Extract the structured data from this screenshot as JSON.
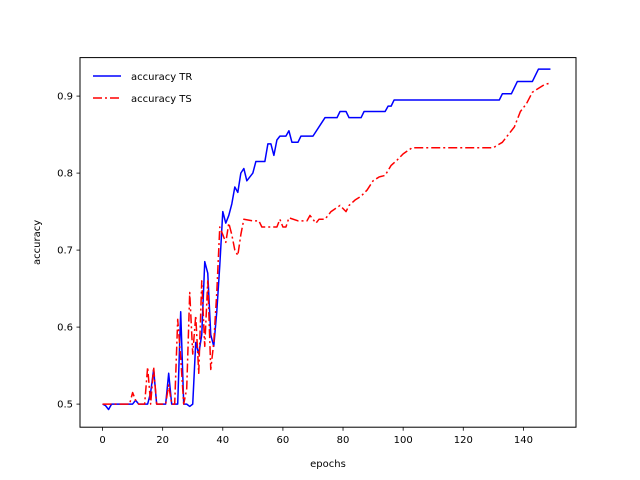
{
  "chart_data": {
    "type": "line",
    "xlabel": "epochs",
    "ylabel": "accuracy",
    "xlim": [
      -7.5,
      157.5
    ],
    "ylim": [
      0.47,
      0.95
    ],
    "xticks": [
      0,
      20,
      40,
      60,
      80,
      100,
      120,
      140
    ],
    "yticks": [
      0.5,
      0.6,
      0.7,
      0.8,
      0.9
    ],
    "ytick_labels": [
      "0.5",
      "0.6",
      "0.7",
      "0.8",
      "0.9"
    ],
    "grid": false,
    "legend_position": "top-left",
    "series": [
      {
        "name": "accuracy TR",
        "color": "#0000ff",
        "style": "solid",
        "points": [
          [
            0,
            0.5
          ],
          [
            1,
            0.498
          ],
          [
            2,
            0.493
          ],
          [
            3,
            0.5
          ],
          [
            5,
            0.5
          ],
          [
            8,
            0.5
          ],
          [
            10,
            0.5
          ],
          [
            11,
            0.505
          ],
          [
            12,
            0.5
          ],
          [
            14,
            0.5
          ],
          [
            15,
            0.5
          ],
          [
            16,
            0.515
          ],
          [
            17,
            0.545
          ],
          [
            18,
            0.5
          ],
          [
            19,
            0.5
          ],
          [
            20,
            0.5
          ],
          [
            21,
            0.5
          ],
          [
            22,
            0.54
          ],
          [
            23,
            0.5
          ],
          [
            24,
            0.5
          ],
          [
            25,
            0.5
          ],
          [
            26,
            0.62
          ],
          [
            27,
            0.5
          ],
          [
            28,
            0.5
          ],
          [
            29,
            0.497
          ],
          [
            30,
            0.5
          ],
          [
            31,
            0.58
          ],
          [
            32,
            0.565
          ],
          [
            33,
            0.59
          ],
          [
            34,
            0.685
          ],
          [
            35,
            0.67
          ],
          [
            36,
            0.59
          ],
          [
            37,
            0.575
          ],
          [
            38,
            0.62
          ],
          [
            39,
            0.68
          ],
          [
            40,
            0.75
          ],
          [
            41,
            0.735
          ],
          [
            42,
            0.745
          ],
          [
            43,
            0.76
          ],
          [
            44,
            0.782
          ],
          [
            45,
            0.775
          ],
          [
            46,
            0.8
          ],
          [
            47,
            0.806
          ],
          [
            48,
            0.79
          ],
          [
            50,
            0.8
          ],
          [
            51,
            0.815
          ],
          [
            54,
            0.815
          ],
          [
            55,
            0.838
          ],
          [
            56,
            0.838
          ],
          [
            57,
            0.823
          ],
          [
            58,
            0.843
          ],
          [
            59,
            0.848
          ],
          [
            61,
            0.848
          ],
          [
            62,
            0.855
          ],
          [
            63,
            0.84
          ],
          [
            65,
            0.84
          ],
          [
            66,
            0.848
          ],
          [
            70,
            0.848
          ],
          [
            74,
            0.872
          ],
          [
            78,
            0.872
          ],
          [
            79,
            0.88
          ],
          [
            81,
            0.88
          ],
          [
            82,
            0.872
          ],
          [
            86,
            0.872
          ],
          [
            87,
            0.88
          ],
          [
            94,
            0.88
          ],
          [
            95,
            0.887
          ],
          [
            96,
            0.887
          ],
          [
            97,
            0.895
          ],
          [
            132,
            0.895
          ],
          [
            133,
            0.903
          ],
          [
            136,
            0.903
          ],
          [
            138,
            0.919
          ],
          [
            143,
            0.919
          ],
          [
            145,
            0.935
          ],
          [
            149,
            0.935
          ]
        ]
      },
      {
        "name": "accuracy TS",
        "color": "#ff0000",
        "style": "dashdot",
        "points": [
          [
            0,
            0.5
          ],
          [
            2,
            0.5
          ],
          [
            5,
            0.5
          ],
          [
            8,
            0.5
          ],
          [
            9,
            0.5
          ],
          [
            10,
            0.515
          ],
          [
            11,
            0.505
          ],
          [
            12,
            0.5
          ],
          [
            14,
            0.5
          ],
          [
            15,
            0.548
          ],
          [
            16,
            0.5
          ],
          [
            17,
            0.548
          ],
          [
            18,
            0.5
          ],
          [
            20,
            0.5
          ],
          [
            21,
            0.5
          ],
          [
            22,
            0.525
          ],
          [
            23,
            0.5
          ],
          [
            24,
            0.5
          ],
          [
            25,
            0.61
          ],
          [
            26,
            0.56
          ],
          [
            27,
            0.5
          ],
          [
            28,
            0.52
          ],
          [
            29,
            0.645
          ],
          [
            30,
            0.565
          ],
          [
            31,
            0.615
          ],
          [
            32,
            0.54
          ],
          [
            33,
            0.66
          ],
          [
            34,
            0.575
          ],
          [
            35,
            0.66
          ],
          [
            36,
            0.545
          ],
          [
            37,
            0.58
          ],
          [
            38,
            0.645
          ],
          [
            39,
            0.73
          ],
          [
            40,
            0.72
          ],
          [
            41,
            0.71
          ],
          [
            42,
            0.735
          ],
          [
            43,
            0.72
          ],
          [
            44,
            0.7
          ],
          [
            45,
            0.693
          ],
          [
            46,
            0.72
          ],
          [
            47,
            0.74
          ],
          [
            50,
            0.738
          ],
          [
            52,
            0.738
          ],
          [
            53,
            0.73
          ],
          [
            58,
            0.73
          ],
          [
            59,
            0.74
          ],
          [
            60,
            0.73
          ],
          [
            61,
            0.73
          ],
          [
            62,
            0.742
          ],
          [
            65,
            0.738
          ],
          [
            68,
            0.738
          ],
          [
            69,
            0.745
          ],
          [
            71,
            0.735
          ],
          [
            72,
            0.74
          ],
          [
            74,
            0.74
          ],
          [
            76,
            0.75
          ],
          [
            79,
            0.758
          ],
          [
            81,
            0.75
          ],
          [
            82,
            0.758
          ],
          [
            84,
            0.765
          ],
          [
            86,
            0.77
          ],
          [
            88,
            0.778
          ],
          [
            90,
            0.79
          ],
          [
            92,
            0.795
          ],
          [
            94,
            0.797
          ],
          [
            96,
            0.81
          ],
          [
            98,
            0.817
          ],
          [
            100,
            0.825
          ],
          [
            103,
            0.833
          ],
          [
            110,
            0.833
          ],
          [
            120,
            0.833
          ],
          [
            130,
            0.833
          ],
          [
            133,
            0.84
          ],
          [
            135,
            0.85
          ],
          [
            137,
            0.86
          ],
          [
            139,
            0.88
          ],
          [
            141,
            0.89
          ],
          [
            143,
            0.905
          ],
          [
            145,
            0.91
          ],
          [
            147,
            0.915
          ],
          [
            149,
            0.917
          ]
        ]
      }
    ]
  }
}
